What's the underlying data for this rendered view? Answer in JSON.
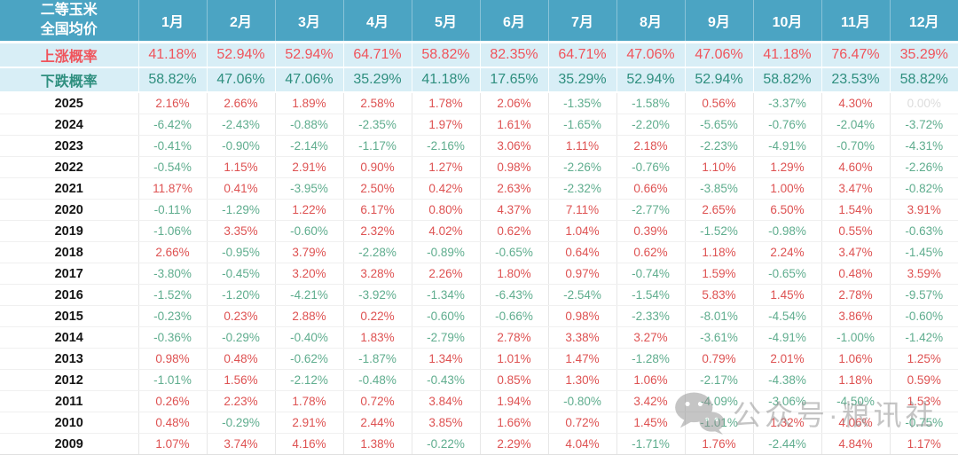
{
  "chart_data": {
    "type": "table",
    "title": "二等玉米 全国均价",
    "title_lines": [
      "二等玉米",
      "全国均价"
    ],
    "columns": [
      "1月",
      "2月",
      "3月",
      "4月",
      "5月",
      "6月",
      "7月",
      "8月",
      "9月",
      "10月",
      "11月",
      "12月"
    ],
    "rise_probability": {
      "label": "上涨概率",
      "values": [
        "41.18%",
        "52.94%",
        "52.94%",
        "64.71%",
        "58.82%",
        "82.35%",
        "64.71%",
        "47.06%",
        "47.06%",
        "41.18%",
        "76.47%",
        "35.29%"
      ]
    },
    "fall_probability": {
      "label": "下跌概率",
      "values": [
        "58.82%",
        "47.06%",
        "47.06%",
        "35.29%",
        "41.18%",
        "17.65%",
        "35.29%",
        "52.94%",
        "52.94%",
        "58.82%",
        "23.53%",
        "58.82%"
      ]
    },
    "rows": [
      {
        "year": "2025",
        "values": [
          "2.16%",
          "2.66%",
          "1.89%",
          "2.58%",
          "1.78%",
          "2.06%",
          "-1.35%",
          "-1.58%",
          "0.56%",
          "-3.37%",
          "4.30%",
          "0.00%"
        ]
      },
      {
        "year": "2024",
        "values": [
          "-6.42%",
          "-2.43%",
          "-0.88%",
          "-2.35%",
          "1.97%",
          "1.61%",
          "-1.65%",
          "-2.20%",
          "-5.65%",
          "-0.76%",
          "-2.04%",
          "-3.72%"
        ]
      },
      {
        "year": "2023",
        "values": [
          "-0.41%",
          "-0.90%",
          "-2.14%",
          "-1.17%",
          "-2.16%",
          "3.06%",
          "1.11%",
          "2.18%",
          "-2.23%",
          "-4.91%",
          "-0.70%",
          "-4.31%"
        ]
      },
      {
        "year": "2022",
        "values": [
          "-0.54%",
          "1.15%",
          "2.91%",
          "0.90%",
          "1.27%",
          "0.98%",
          "-2.26%",
          "-0.76%",
          "1.10%",
          "1.29%",
          "4.60%",
          "-2.26%"
        ]
      },
      {
        "year": "2021",
        "values": [
          "11.87%",
          "0.41%",
          "-3.95%",
          "2.50%",
          "0.42%",
          "2.63%",
          "-2.32%",
          "0.66%",
          "-3.85%",
          "1.00%",
          "3.47%",
          "-0.82%"
        ]
      },
      {
        "year": "2020",
        "values": [
          "-0.11%",
          "-1.29%",
          "1.22%",
          "6.17%",
          "0.80%",
          "4.37%",
          "7.11%",
          "-2.77%",
          "2.65%",
          "6.50%",
          "1.54%",
          "3.91%"
        ]
      },
      {
        "year": "2019",
        "values": [
          "-1.06%",
          "3.35%",
          "-0.60%",
          "2.32%",
          "4.02%",
          "0.62%",
          "1.04%",
          "0.39%",
          "-1.52%",
          "-0.98%",
          "0.55%",
          "-0.63%"
        ]
      },
      {
        "year": "2018",
        "values": [
          "2.66%",
          "-0.95%",
          "3.79%",
          "-2.28%",
          "-0.89%",
          "-0.65%",
          "0.64%",
          "0.62%",
          "1.18%",
          "2.24%",
          "3.47%",
          "-1.45%"
        ]
      },
      {
        "year": "2017",
        "values": [
          "-3.80%",
          "-0.45%",
          "3.20%",
          "3.28%",
          "2.26%",
          "1.80%",
          "0.97%",
          "-0.74%",
          "1.59%",
          "-0.65%",
          "0.48%",
          "3.59%"
        ]
      },
      {
        "year": "2016",
        "values": [
          "-1.52%",
          "-1.20%",
          "-4.21%",
          "-3.92%",
          "-1.34%",
          "-6.43%",
          "-2.54%",
          "-1.54%",
          "5.83%",
          "1.45%",
          "2.78%",
          "-9.57%"
        ]
      },
      {
        "year": "2015",
        "values": [
          "-0.23%",
          "0.23%",
          "2.88%",
          "0.22%",
          "-0.60%",
          "-0.66%",
          "0.98%",
          "-2.33%",
          "-8.01%",
          "-4.54%",
          "3.86%",
          "-0.60%"
        ]
      },
      {
        "year": "2014",
        "values": [
          "-0.36%",
          "-0.29%",
          "-0.40%",
          "1.83%",
          "-2.79%",
          "2.78%",
          "3.38%",
          "3.27%",
          "-3.61%",
          "-4.91%",
          "-1.00%",
          "-1.42%"
        ]
      },
      {
        "year": "2013",
        "values": [
          "0.98%",
          "0.48%",
          "-0.62%",
          "-1.87%",
          "1.34%",
          "1.01%",
          "1.47%",
          "-1.28%",
          "0.79%",
          "2.01%",
          "1.06%",
          "1.25%"
        ]
      },
      {
        "year": "2012",
        "values": [
          "-1.01%",
          "1.56%",
          "-2.12%",
          "-0.48%",
          "-0.43%",
          "0.85%",
          "1.30%",
          "1.06%",
          "-2.17%",
          "-4.38%",
          "1.18%",
          "0.59%"
        ]
      },
      {
        "year": "2011",
        "values": [
          "0.26%",
          "2.23%",
          "1.78%",
          "0.72%",
          "3.84%",
          "1.94%",
          "-0.80%",
          "3.42%",
          "-4.09%",
          "-3.06%",
          "-4.50%",
          "1.53%"
        ]
      },
      {
        "year": "2010",
        "values": [
          "0.48%",
          "-0.29%",
          "2.91%",
          "2.44%",
          "3.85%",
          "1.66%",
          "0.72%",
          "1.45%",
          "-1.01%",
          "1.32%",
          "4.06%",
          "-0.75%"
        ]
      },
      {
        "year": "2009",
        "values": [
          "1.07%",
          "3.74%",
          "4.16%",
          "1.38%",
          "-0.22%",
          "2.29%",
          "4.04%",
          "-1.71%",
          "1.76%",
          "-2.44%",
          "4.84%",
          "1.17%"
        ]
      }
    ]
  },
  "watermark": {
    "text": "公众号·粮讯社",
    "icon": "wechat-icon"
  },
  "colors": {
    "header_bg": "#4BA4C3",
    "band_bg": "#D8EEF6",
    "rise_red": "#F0545C",
    "fall_green": "#2F8F7F",
    "pos_red": "#DE5252",
    "neg_green": "#5FAD8E",
    "zero_gray": "#DCDCDC",
    "year_text": "#151515",
    "watermark_gray": "#8D8D8D"
  }
}
